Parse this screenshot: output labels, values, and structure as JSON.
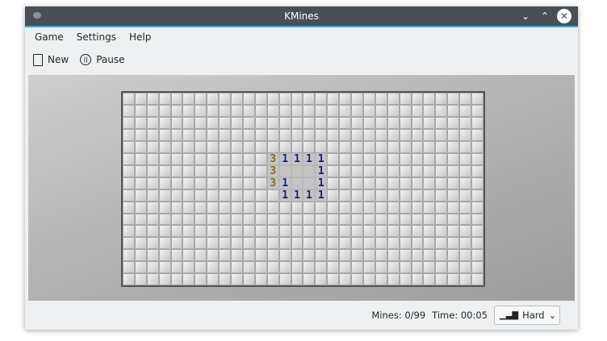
{
  "window": {
    "title": "KMines",
    "buttons": [
      "minimize",
      "maximize",
      "close"
    ]
  },
  "menu": [
    "Game",
    "Settings",
    "Help"
  ],
  "toolbar": {
    "new_label": "New",
    "pause_label": "Pause"
  },
  "board": {
    "columns": 30,
    "rows": 16,
    "revealed": [
      {
        "row": 5,
        "col": 12,
        "value": "3"
      },
      {
        "row": 5,
        "col": 13,
        "value": "1"
      },
      {
        "row": 5,
        "col": 14,
        "value": "1"
      },
      {
        "row": 5,
        "col": 15,
        "value": "1"
      },
      {
        "row": 5,
        "col": 16,
        "value": "1"
      },
      {
        "row": 6,
        "col": 12,
        "value": "3"
      },
      {
        "row": 6,
        "col": 13,
        "value": ""
      },
      {
        "row": 6,
        "col": 14,
        "value": ""
      },
      {
        "row": 6,
        "col": 15,
        "value": ""
      },
      {
        "row": 6,
        "col": 16,
        "value": "1"
      },
      {
        "row": 7,
        "col": 12,
        "value": "3"
      },
      {
        "row": 7,
        "col": 13,
        "value": "1"
      },
      {
        "row": 7,
        "col": 14,
        "value": ""
      },
      {
        "row": 7,
        "col": 15,
        "value": ""
      },
      {
        "row": 7,
        "col": 16,
        "value": "1"
      },
      {
        "row": 8,
        "col": 13,
        "value": "1"
      },
      {
        "row": 8,
        "col": 14,
        "value": "1"
      },
      {
        "row": 8,
        "col": 15,
        "value": "1"
      },
      {
        "row": 8,
        "col": 16,
        "value": "1"
      }
    ],
    "colors": {
      "1": "#1a1a9a",
      "3": "#8a6d10"
    }
  },
  "status": {
    "mines": "Mines: 0/99",
    "time": "Time: 00:05",
    "difficulty": "Hard"
  }
}
